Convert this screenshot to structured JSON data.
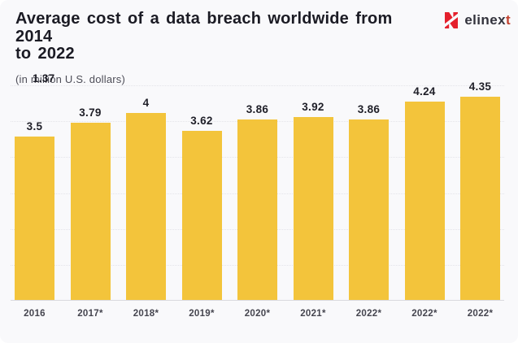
{
  "header": {
    "title": "Average cost of a data breach worldwide from 2014\nto 2022",
    "subtitle": "(in million U.S. dollars)"
  },
  "brand": {
    "name_main": "elinex",
    "name_accent": "t",
    "icon": "elinext-n-icon",
    "icon_color": "#E4202C",
    "text_color": "#32323C",
    "accent_color": "#C2402E"
  },
  "chart_data": {
    "type": "bar",
    "title": "Average cost of a data breach worldwide from 2014 to 2022",
    "subtitle": "(in million U.S. dollars)",
    "categories": [
      "2016",
      "2017*",
      "2018*",
      "2019*",
      "2020*",
      "2021*",
      "2022*",
      "2022*",
      "2022*"
    ],
    "values": [
      3.5,
      3.79,
      4,
      3.62,
      3.86,
      3.92,
      3.86,
      4.24,
      4.35
    ],
    "value_labels": [
      "3.5",
      "3.79",
      "4",
      "3.62",
      "3.86",
      "3.92",
      "3.86",
      "4.24",
      "4.35"
    ],
    "stray_label": "1.37",
    "xlabel": "",
    "ylabel": "",
    "ylim": [
      0,
      4.61
    ],
    "gridline_count": 6,
    "grid": true,
    "legend": false,
    "bar_color": "#F3C43B",
    "background_color": "#F9F9FB"
  }
}
